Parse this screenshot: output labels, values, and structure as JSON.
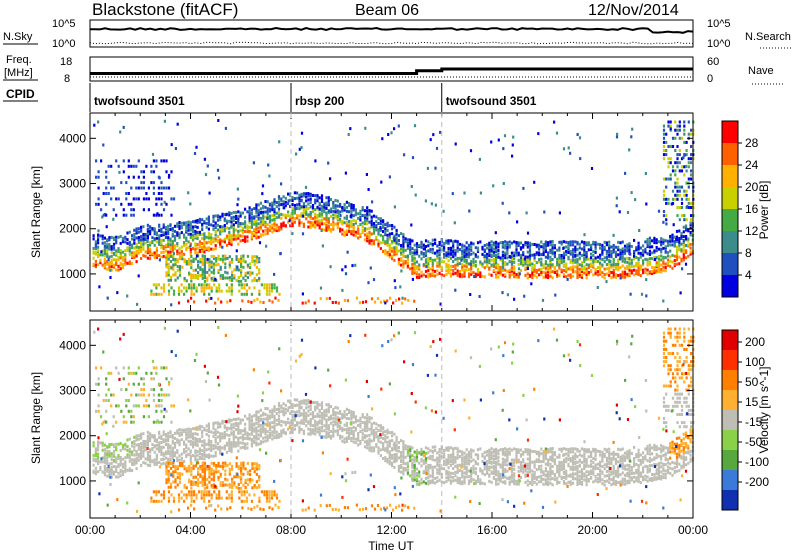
{
  "header": {
    "station": "Blackstone (fitACF)",
    "beam": "Beam 06",
    "date": "12/Nov/2014"
  },
  "noise_panel": {
    "left_label": "N.Sky",
    "right_label": "N.Search",
    "left_ticks": [
      "10^5",
      "10^0"
    ],
    "right_ticks": [
      "10^5",
      "10^0"
    ]
  },
  "freq_panel": {
    "left_label_1": "Freq.",
    "left_label_2": "[MHz]",
    "right_label": "Nave",
    "left_ticks": [
      "18",
      "8"
    ],
    "right_ticks": [
      "60",
      "0"
    ]
  },
  "cpid_panel": {
    "label": "CPID",
    "segments": [
      {
        "name": "twofsound 3501",
        "start_hour": 0
      },
      {
        "name": "rbsp 200",
        "start_hour": 8
      },
      {
        "name": "twofsound 3501",
        "start_hour": 14
      }
    ]
  },
  "power_panel": {
    "ylabel": "Slant Range [km]",
    "yticks": [
      "1000",
      "2000",
      "3000",
      "4000"
    ],
    "colorbar_label": "Power [dB]",
    "colorbar_ticks": [
      "4",
      "8",
      "12",
      "16",
      "20",
      "24",
      "28"
    ],
    "colors": [
      "#0000e0",
      "#2050c0",
      "#3c8c8c",
      "#44aa44",
      "#c8d000",
      "#ffb000",
      "#ff6000",
      "#ff0000"
    ]
  },
  "velocity_panel": {
    "ylabel": "Slant Range [km]",
    "yticks": [
      "1000",
      "2000",
      "3000",
      "4000"
    ],
    "colorbar_label": "Velocity [m s^-1]",
    "colorbar_ticks": [
      "200",
      "100",
      "50",
      "15",
      "-15",
      "-50",
      "-100",
      "-200"
    ],
    "colors": [
      "#1030b0",
      "#3a7ad8",
      "#58a840",
      "#8ad048",
      "#bebeb4",
      "#ffb030",
      "#ff8000",
      "#ff3000",
      "#e00000"
    ]
  },
  "xaxis": {
    "label": "Time UT",
    "ticks": [
      "00:00",
      "04:00",
      "08:00",
      "12:00",
      "16:00",
      "20:00",
      "00:00"
    ]
  },
  "chart_data": {
    "type": "heatmap",
    "title": "Blackstone (fitACF) Beam 06 12/Nov/2014",
    "xlabel": "Time UT",
    "ylabel": "Slant Range [km]",
    "x_range_hours": [
      0,
      24
    ],
    "ylim": [
      180,
      4560
    ],
    "cpid_change_hours": [
      8,
      14
    ],
    "power_band": {
      "description": "main scatter band core slant range (km) vs hour",
      "hours": [
        0,
        1,
        2,
        3,
        4,
        5,
        6,
        7,
        8,
        9,
        10,
        11,
        12,
        13,
        14,
        15,
        16,
        17,
        18,
        19,
        20,
        21,
        22,
        23,
        24
      ],
      "core_range_km": [
        1300,
        1200,
        1450,
        1500,
        1550,
        1700,
        1800,
        2000,
        2200,
        2150,
        2000,
        1850,
        1450,
        1050,
        1100,
        1050,
        1050,
        1050,
        1050,
        1050,
        1050,
        1050,
        1100,
        1200,
        1600
      ]
    },
    "frequency_mhz_steps": [
      {
        "from_hour": 0,
        "to_hour": 13,
        "value": 10.5
      },
      {
        "from_hour": 13,
        "to_hour": 14,
        "value": 12
      },
      {
        "from_hour": 14,
        "to_hour": 24,
        "value": 13
      }
    ]
  }
}
